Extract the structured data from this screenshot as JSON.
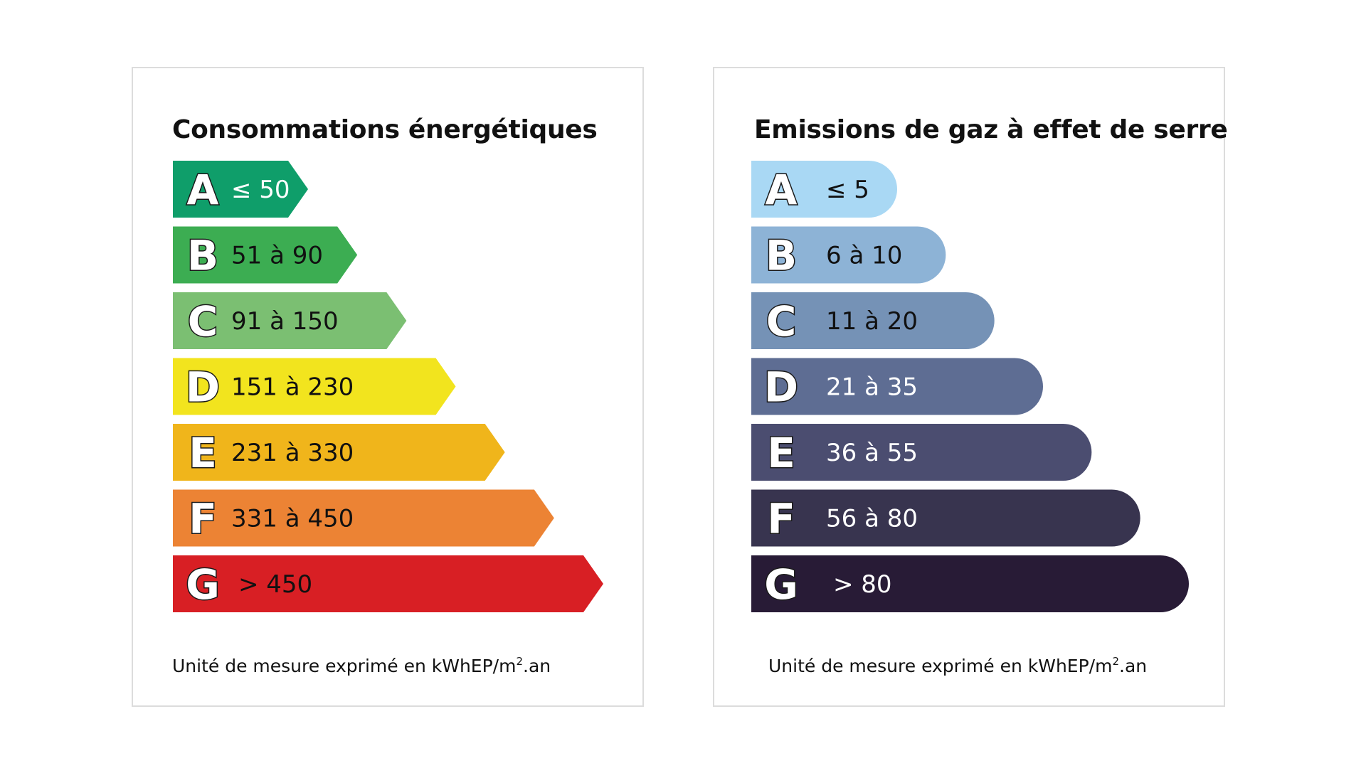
{
  "chart_data": [
    {
      "type": "bar",
      "title": "Consommations énergétiques",
      "categories": [
        "A",
        "B",
        "C",
        "D",
        "E",
        "F",
        "G"
      ],
      "ranges": [
        "≤ 50",
        "51 à 90",
        "91 à 150",
        "151 à 230",
        "231 à 330",
        "331 à 450",
        "> 450"
      ],
      "colors": [
        "#0f9e6a",
        "#3cad52",
        "#7bbf72",
        "#f2e41e",
        "#f0b51b",
        "#ec8334",
        "#d81f24"
      ],
      "text_colors": [
        "#ffffff",
        "#111111",
        "#111111",
        "#111111",
        "#111111",
        "#111111",
        "#111111"
      ],
      "unit_prefix": "Unité de mesure exprimé en kWhEP/m",
      "unit_sup": "2",
      "unit_suffix": ".an"
    },
    {
      "type": "bar",
      "title": "Emissions de gaz à effet de serre",
      "categories": [
        "A",
        "B",
        "C",
        "D",
        "E",
        "F",
        "G"
      ],
      "ranges": [
        "≤ 5",
        "6 à 10",
        "11 à 20",
        "21 à 35",
        "36 à 55",
        "56 à 80",
        "> 80"
      ],
      "colors": [
        "#a9d8f4",
        "#8db3d6",
        "#7592b6",
        "#5e6d93",
        "#4b4d70",
        "#38344f",
        "#281b36"
      ],
      "text_colors": [
        "#111111",
        "#111111",
        "#111111",
        "#ffffff",
        "#ffffff",
        "#ffffff",
        "#ffffff"
      ],
      "unit_prefix": "Unité de mesure exprimé en kWhEP/m",
      "unit_sup": "2",
      "unit_suffix": ".an"
    }
  ]
}
